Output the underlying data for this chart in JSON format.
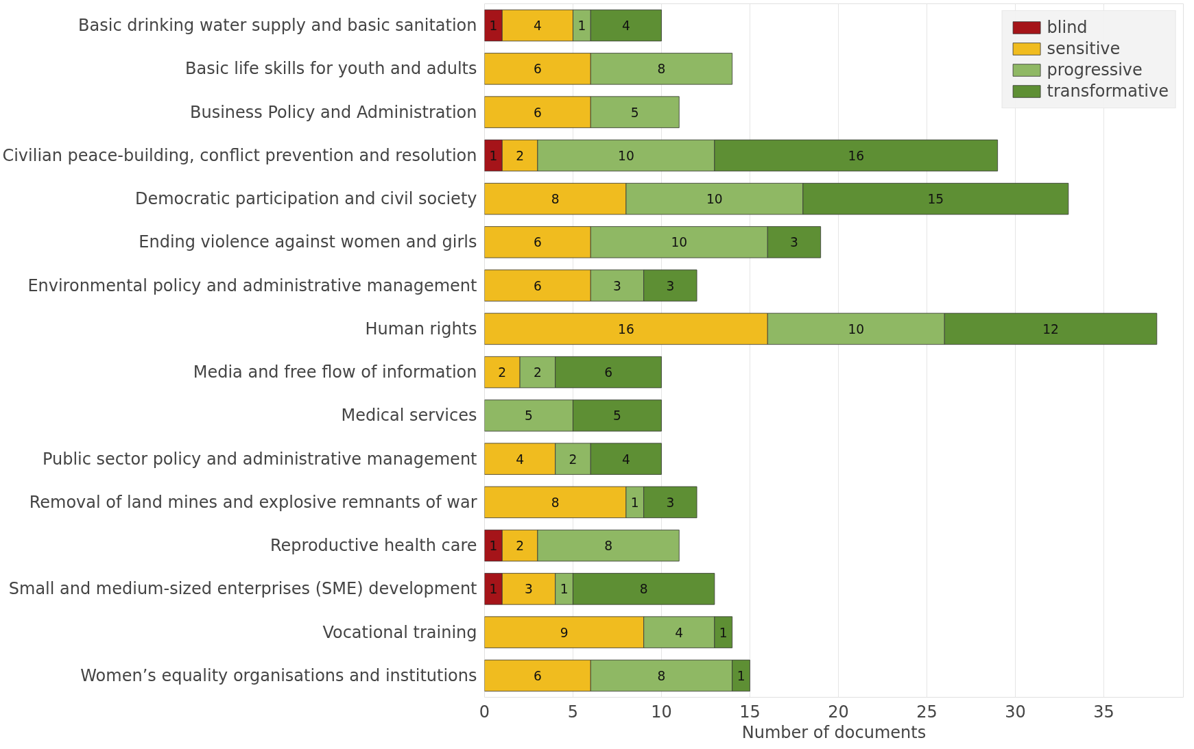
{
  "chart_data": {
    "type": "bar",
    "orientation": "horizontal",
    "stacked": true,
    "data_labels": true,
    "xlabel": "Number of documents",
    "xlim": [
      0,
      39.5
    ],
    "xticks": [
      0,
      5,
      10,
      15,
      20,
      25,
      30,
      35
    ],
    "grid": "x",
    "legend": "top right",
    "categories": [
      "Basic drinking water supply and basic sanitation",
      "Basic life skills for youth and adults",
      "Business Policy and Administration",
      "Civilian peace-building, conflict prevention and resolution",
      "Democratic participation and civil society",
      "Ending violence against women and girls",
      "Environmental policy and administrative management",
      "Human rights",
      "Media and free flow of information",
      "Medical services",
      "Public sector policy and administrative management",
      "Removal of land mines and explosive remnants of war",
      "Reproductive health care",
      "Small and medium-sized enterprises (SME) development",
      "Vocational training",
      "Women’s equality organisations and institutions"
    ],
    "series": [
      {
        "name": "blind",
        "color": "#a51419",
        "values": [
          1,
          null,
          null,
          1,
          null,
          null,
          null,
          null,
          null,
          null,
          null,
          null,
          1,
          1,
          null,
          null
        ]
      },
      {
        "name": "sensitive",
        "color": "#f0bc1f",
        "values": [
          4,
          6,
          6,
          2,
          8,
          6,
          6,
          16,
          2,
          null,
          4,
          8,
          2,
          3,
          9,
          6
        ]
      },
      {
        "name": "progressive",
        "color": "#8fb864",
        "values": [
          1,
          8,
          5,
          10,
          10,
          10,
          3,
          10,
          2,
          5,
          2,
          1,
          8,
          1,
          4,
          8
        ]
      },
      {
        "name": "transformative",
        "color": "#5e8f34",
        "values": [
          4,
          null,
          null,
          16,
          15,
          3,
          3,
          12,
          6,
          5,
          4,
          3,
          null,
          8,
          1,
          1
        ]
      }
    ]
  }
}
